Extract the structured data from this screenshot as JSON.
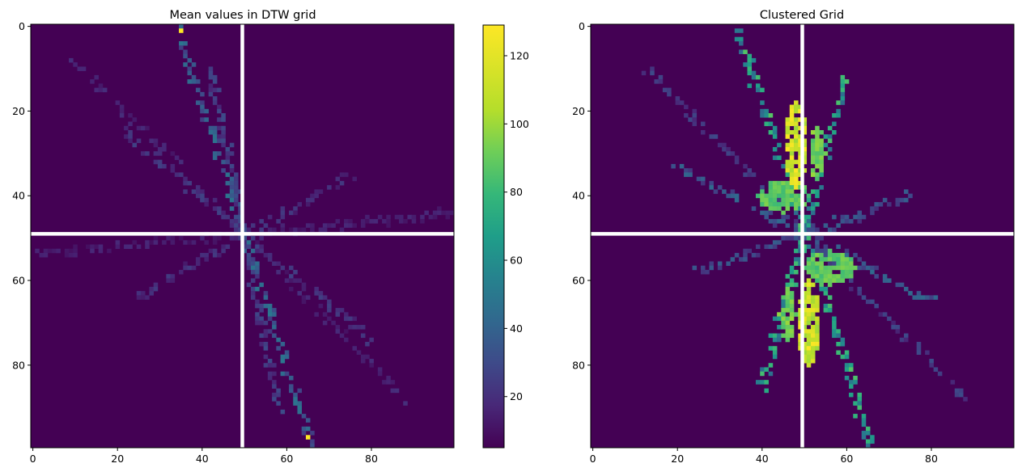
{
  "chart_data": [
    {
      "type": "heatmap",
      "title": "Mean values in DTW grid",
      "grid_size": [
        100,
        100
      ],
      "x_ticks": [
        0,
        20,
        40,
        60,
        80
      ],
      "y_ticks": [
        0,
        20,
        40,
        60,
        80
      ],
      "xlim": [
        -0.5,
        99.5
      ],
      "ylim": [
        99.5,
        -0.5
      ],
      "colormap": "viridis",
      "value_range": [
        5,
        129
      ],
      "background_value": 5,
      "divider_lines": {
        "x": 50,
        "y": 49,
        "color": "#ffffff"
      },
      "colorbar": {
        "ticks": [
          20,
          40,
          60,
          80,
          100,
          120
        ],
        "range": [
          5,
          129
        ]
      },
      "hotspots": [
        {
          "x": 35,
          "y": 1,
          "value": 129
        },
        {
          "x": 65,
          "y": 97,
          "value": 129
        }
      ],
      "rays": [
        {
          "from": [
            50,
            49
          ],
          "to": [
            34,
            0
          ],
          "value": 45
        },
        {
          "from": [
            50,
            49
          ],
          "to": [
            66,
            99
          ],
          "value": 45
        },
        {
          "from": [
            50,
            49
          ],
          "to": [
            10,
            8
          ],
          "value": 18
        },
        {
          "from": [
            50,
            49
          ],
          "to": [
            90,
            90
          ],
          "value": 18
        },
        {
          "from": [
            50,
            49
          ],
          "to": [
            0,
            54
          ],
          "value": 16
        },
        {
          "from": [
            50,
            49
          ],
          "to": [
            99,
            44
          ],
          "value": 16
        },
        {
          "from": [
            50,
            49
          ],
          "to": [
            20,
            24
          ],
          "value": 25
        },
        {
          "from": [
            50,
            49
          ],
          "to": [
            80,
            74
          ],
          "value": 25
        },
        {
          "from": [
            50,
            49
          ],
          "to": [
            42,
            10
          ],
          "value": 28
        },
        {
          "from": [
            50,
            49
          ],
          "to": [
            58,
            90
          ],
          "value": 28
        },
        {
          "from": [
            50,
            49
          ],
          "to": [
            75,
            35
          ],
          "value": 22
        },
        {
          "from": [
            50,
            49
          ],
          "to": [
            25,
            64
          ],
          "value": 22
        }
      ]
    },
    {
      "type": "heatmap",
      "title": "Clustered Grid",
      "grid_size": [
        100,
        100
      ],
      "x_ticks": [
        0,
        20,
        40,
        60,
        80
      ],
      "y_ticks": [
        0,
        20,
        40,
        60,
        80
      ],
      "xlim": [
        -0.5,
        99.5
      ],
      "ylim": [
        99.5,
        -0.5
      ],
      "colormap": "viridis",
      "value_range": [
        5,
        129
      ],
      "background_value": 5,
      "divider_lines": {
        "x": 50,
        "y": 49,
        "color": "#ffffff"
      },
      "blobs": [
        {
          "cx": 48,
          "cy": 28,
          "rx": 2.5,
          "ry": 10,
          "value": 129
        },
        {
          "cx": 51,
          "cy": 70,
          "rx": 2.5,
          "ry": 10,
          "value": 129
        },
        {
          "cx": 45,
          "cy": 40,
          "rx": 6,
          "ry": 4,
          "value": 105
        },
        {
          "cx": 56,
          "cy": 57,
          "rx": 6,
          "ry": 4,
          "value": 105
        },
        {
          "cx": 53,
          "cy": 30,
          "rx": 2,
          "ry": 6,
          "value": 110
        },
        {
          "cx": 46,
          "cy": 68,
          "rx": 2,
          "ry": 6,
          "value": 110
        }
      ],
      "rays": [
        {
          "from": [
            50,
            49
          ],
          "to": [
            34,
            0
          ],
          "value": 80
        },
        {
          "from": [
            50,
            49
          ],
          "to": [
            66,
            99
          ],
          "value": 80
        },
        {
          "from": [
            50,
            49
          ],
          "to": [
            13,
            10
          ],
          "value": 28
        },
        {
          "from": [
            50,
            49
          ],
          "to": [
            88,
            88
          ],
          "value": 28
        },
        {
          "from": [
            50,
            49
          ],
          "to": [
            20,
            33
          ],
          "value": 40
        },
        {
          "from": [
            50,
            49
          ],
          "to": [
            80,
            65
          ],
          "value": 40
        },
        {
          "from": [
            50,
            49
          ],
          "to": [
            60,
            12
          ],
          "value": 78
        },
        {
          "from": [
            50,
            49
          ],
          "to": [
            40,
            86
          ],
          "value": 78
        },
        {
          "from": [
            50,
            49
          ],
          "to": [
            75,
            40
          ],
          "value": 35
        },
        {
          "from": [
            50,
            49
          ],
          "to": [
            25,
            58
          ],
          "value": 35
        }
      ]
    }
  ]
}
